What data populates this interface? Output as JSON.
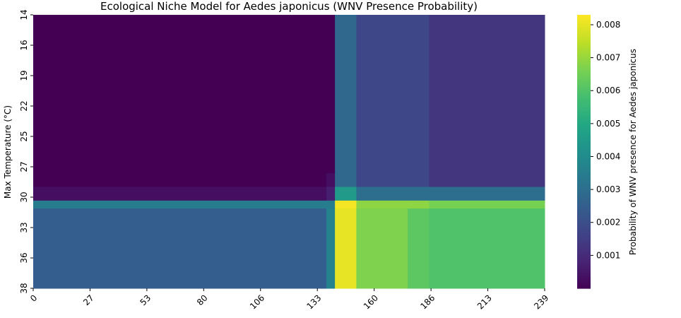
{
  "chart_data": {
    "type": "heatmap",
    "title": "Ecological Niche Model for Aedes japonicus (WNV Presence Probability)",
    "xlabel": "",
    "ylabel": "Max Temperature (°C)",
    "x_tick_labels": [
      "0",
      "27",
      "53",
      "80",
      "106",
      "133",
      "160",
      "186",
      "213",
      "239"
    ],
    "y_tick_labels": [
      "14",
      "16",
      "19",
      "22",
      "25",
      "27",
      "30",
      "33",
      "36",
      "38"
    ],
    "x_range": [
      0,
      239
    ],
    "y_range": [
      14,
      38
    ],
    "colorbar": {
      "label": "Probability of WNV presence for Aedes japonicus",
      "min": 0.0,
      "max": 0.0083,
      "ticks": [
        "0.001",
        "0.002",
        "0.003",
        "0.004",
        "0.005",
        "0.006",
        "0.007",
        "0.008"
      ],
      "tick_values": [
        0.001,
        0.002,
        0.003,
        0.004,
        0.005,
        0.006,
        0.007,
        0.008
      ],
      "colormap": "viridis"
    },
    "x_segments": [
      {
        "from": 0,
        "to": 132
      },
      {
        "from": 132,
        "to": 137
      },
      {
        "from": 137,
        "to": 141
      },
      {
        "from": 141,
        "to": 151
      },
      {
        "from": 151,
        "to": 175
      },
      {
        "from": 175,
        "to": 185
      },
      {
        "from": 185,
        "to": 239
      }
    ],
    "y_segments": [
      {
        "from": 14,
        "to": 27.9
      },
      {
        "from": 27.9,
        "to": 29.1
      },
      {
        "from": 29.1,
        "to": 30.3
      },
      {
        "from": 30.3,
        "to": 31.0
      },
      {
        "from": 31.0,
        "to": 38
      }
    ],
    "values": [
      [
        0.0,
        0.0,
        0.0,
        0.0028,
        0.0018,
        0.0018,
        0.0013
      ],
      [
        0.0,
        0.0,
        0.0003,
        0.0028,
        0.0018,
        0.0018,
        0.0013
      ],
      [
        0.0003,
        0.0003,
        0.0007,
        0.0045,
        0.003,
        0.003,
        0.003
      ],
      [
        0.0035,
        0.0035,
        0.0035,
        0.0082,
        0.0069,
        0.0069,
        0.0066
      ],
      [
        0.0025,
        0.0025,
        0.0037,
        0.008,
        0.0067,
        0.0062,
        0.006
      ]
    ]
  }
}
